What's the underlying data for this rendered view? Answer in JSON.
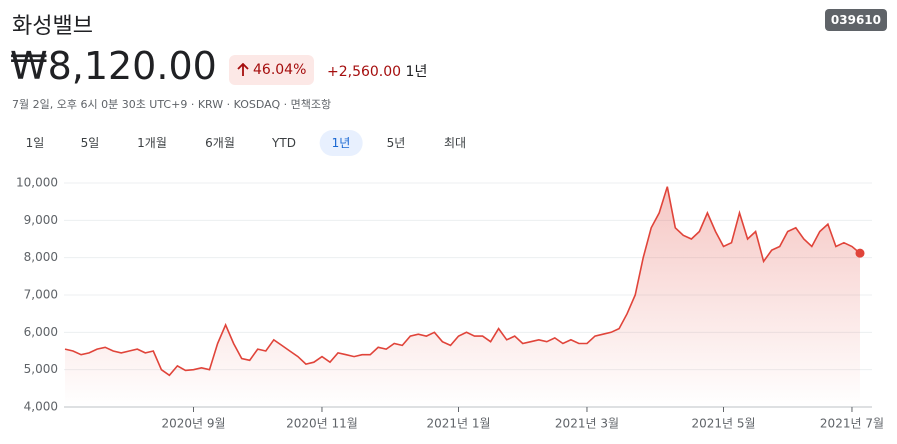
{
  "header": {
    "title": "화성밸브",
    "ticker": "039610",
    "price": "₩8,120.00",
    "change_percent": "46.04%",
    "change": "+2,560.00",
    "period": "1년",
    "timestamp": "7월 2일, 오후 6시 0분 30초 UTC+9 · KRW · KOSDAQ · 면책조항"
  },
  "ranges": [
    "1일",
    "5일",
    "1개월",
    "6개월",
    "YTD",
    "1년",
    "5년",
    "최대"
  ],
  "selected_range": 5,
  "chart_data": {
    "type": "area",
    "categories": [
      null,
      null,
      null,
      null,
      null,
      null,
      null,
      null,
      null,
      null,
      null,
      null,
      null,
      null,
      null,
      null,
      "2020년 9월",
      null,
      null,
      null,
      null,
      null,
      null,
      null,
      null,
      null,
      null,
      null,
      null,
      null,
      null,
      null,
      "2020년 11월",
      null,
      null,
      null,
      null,
      null,
      null,
      null,
      null,
      null,
      null,
      null,
      null,
      null,
      null,
      null,
      null,
      "2021년 1월",
      null,
      null,
      null,
      null,
      null,
      null,
      null,
      null,
      null,
      null,
      null,
      null,
      null,
      null,
      null,
      "2021년 3월",
      null,
      null,
      null,
      null,
      null,
      null,
      null,
      null,
      null,
      null,
      null,
      null,
      null,
      null,
      null,
      null,
      "2021년 5월",
      null,
      null,
      null,
      null,
      null,
      null,
      null,
      null,
      null,
      null,
      null,
      null,
      null,
      null,
      null,
      "2021년 7월",
      null
    ],
    "series": [
      {
        "color": "#e0443a",
        "values": [
          5550,
          5500,
          5400,
          5450,
          5550,
          5600,
          5500,
          5450,
          5500,
          5550,
          5450,
          5500,
          5000,
          4850,
          5100,
          4980,
          5000,
          5050,
          5000,
          5700,
          6200,
          5700,
          5300,
          5250,
          5550,
          5500,
          5800,
          5650,
          5500,
          5350,
          5150,
          5200,
          5350,
          5200,
          5450,
          5400,
          5350,
          5400,
          5400,
          5600,
          5550,
          5700,
          5650,
          5900,
          5950,
          5900,
          6000,
          5750,
          5650,
          5900,
          6000,
          5900,
          5900,
          5750,
          6100,
          5800,
          5900,
          5700,
          5750,
          5800,
          5750,
          5850,
          5700,
          5800,
          5700,
          5700,
          5900,
          5950,
          6000,
          6100,
          6500,
          7000,
          8000,
          8800,
          9200,
          9900,
          8800,
          8600,
          8500,
          8700,
          9200,
          8700,
          8300,
          8400,
          9200,
          8500,
          8700,
          7900,
          8200,
          8300,
          8700,
          8800,
          8500,
          8300,
          8700,
          8900,
          8300,
          8400,
          8300,
          8120
        ]
      }
    ],
    "ylim": [
      4000,
      10000
    ],
    "yticks": [
      {
        "value": 4000,
        "label": "4,000"
      },
      {
        "value": 5000,
        "label": "5,000"
      },
      {
        "value": 6000,
        "label": "6,000"
      },
      {
        "value": 7000,
        "label": "7,000"
      },
      {
        "value": 8000,
        "label": "8,000"
      },
      {
        "value": 9000,
        "label": "9,000"
      },
      {
        "value": 10000,
        "label": "10,000"
      }
    ],
    "grid": true
  }
}
